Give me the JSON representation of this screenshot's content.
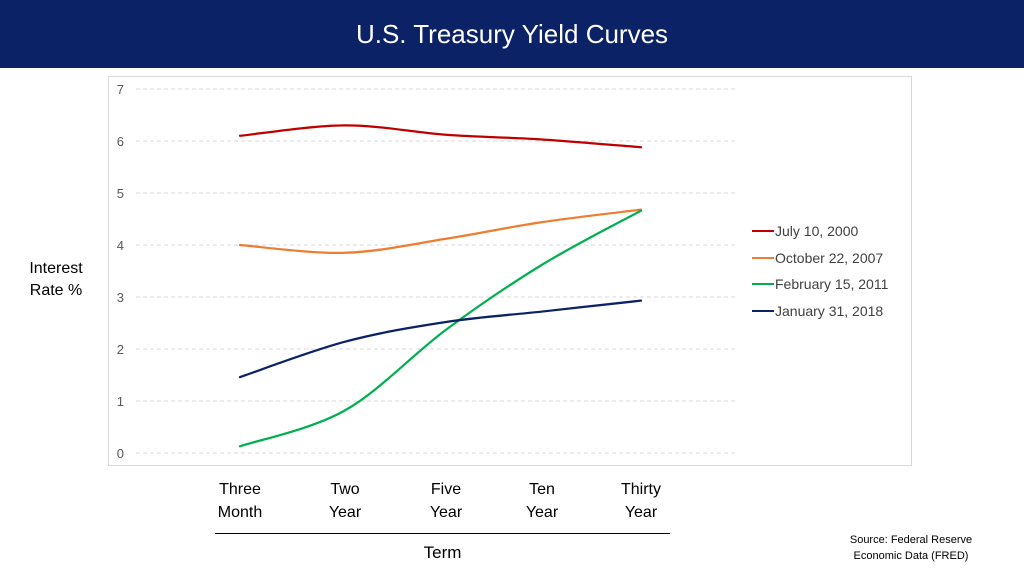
{
  "header": {
    "title": "U.S. Treasury Yield Curves"
  },
  "axis": {
    "ylabel_line1": "Interest",
    "ylabel_line2": "Rate %",
    "xlabel": "Term"
  },
  "source": {
    "line1": "Source:  Federal Reserve",
    "line2": "Economic Data (FRED)"
  },
  "chart_data": {
    "type": "line",
    "title": "U.S. Treasury Yield Curves",
    "xlabel": "Term",
    "ylabel": "Interest Rate %",
    "categories": [
      [
        "Three",
        "Month"
      ],
      [
        "Two",
        "Year"
      ],
      [
        "Five",
        "Year"
      ],
      [
        "Ten",
        "Year"
      ],
      [
        "Thirty",
        "Year"
      ]
    ],
    "ylim": [
      0,
      7
    ],
    "yticks": [
      0,
      1,
      2,
      3,
      4,
      5,
      6,
      7
    ],
    "grid": "horizontal dashed",
    "legend_position": "right",
    "smooth": true,
    "series": [
      {
        "name": "July 10, 2000",
        "color": "#c00000",
        "values": [
          6.1,
          6.3,
          6.12,
          6.03,
          5.88
        ]
      },
      {
        "name": "October 22, 2007",
        "color": "#ed7d31",
        "values": [
          4.0,
          3.85,
          4.12,
          4.44,
          4.68
        ]
      },
      {
        "name": "February 15, 2011",
        "color": "#00b050",
        "values": [
          0.13,
          0.82,
          2.37,
          3.62,
          4.66
        ]
      },
      {
        "name": "January 31, 2018",
        "color": "#0b2266",
        "values": [
          1.46,
          2.14,
          2.52,
          2.72,
          2.93
        ]
      }
    ]
  }
}
